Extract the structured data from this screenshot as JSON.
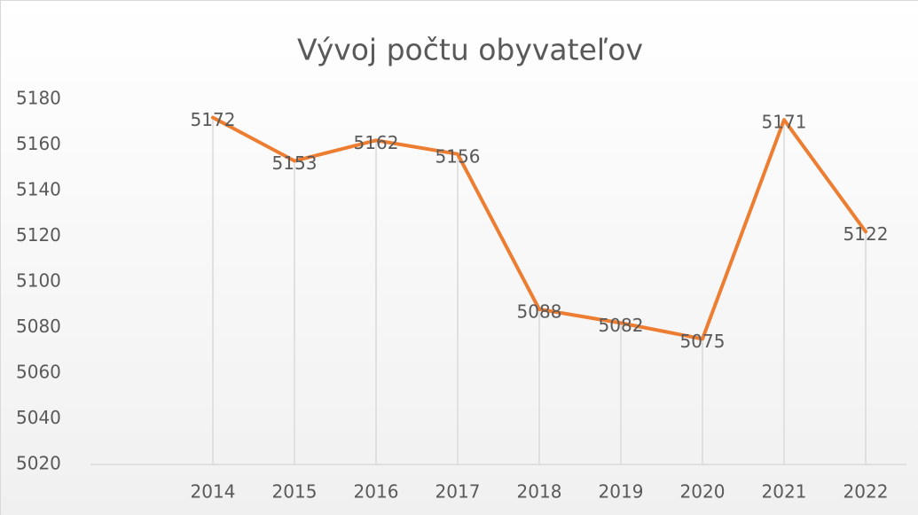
{
  "chart_data": {
    "type": "line",
    "title": "Vývoj počtu obyvateľov",
    "categories": [
      null,
      "2014",
      "2015",
      "2016",
      "2017",
      "2018",
      "2019",
      "2020",
      "2021",
      "2022"
    ],
    "values": [
      null,
      5172,
      5153,
      5162,
      5156,
      5088,
      5082,
      5075,
      5171,
      5122
    ],
    "color": "#ed7d31",
    "ylim": [
      5020,
      5180
    ],
    "yticks": [
      5020,
      5040,
      5060,
      5080,
      5100,
      5120,
      5140,
      5160,
      5180
    ],
    "drop_lines": true,
    "data_labels": true
  }
}
